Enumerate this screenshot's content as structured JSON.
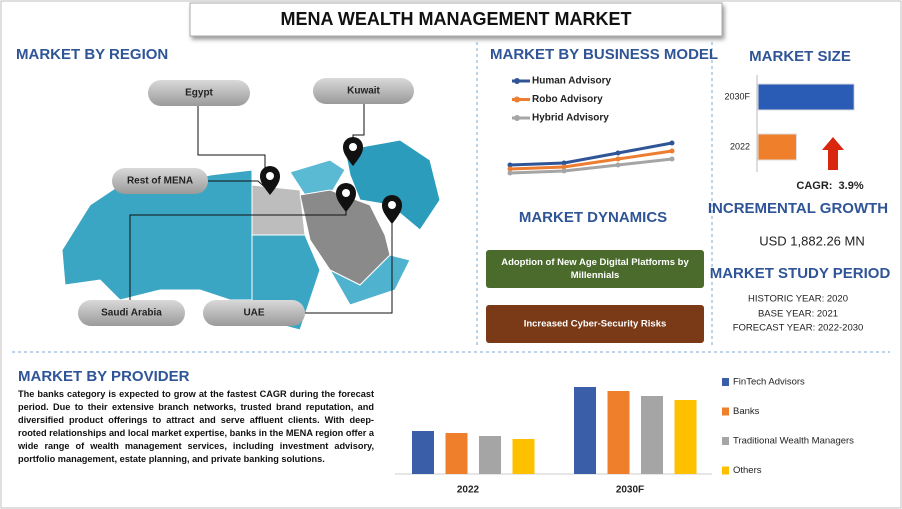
{
  "header": {
    "title": "MENA WEALTH MANAGEMENT MARKET"
  },
  "region": {
    "title": "MARKET BY REGION",
    "labels": [
      "Egypt",
      "Kuwait",
      "Rest of MENA",
      "Saudi Arabia",
      "UAE"
    ]
  },
  "dynamics": {
    "title": "MARKET DYNAMICS",
    "items": [
      "Adoption of New Age Digital Platforms by Millennials",
      "Increased Cyber-Security Risks"
    ]
  },
  "size": {
    "title": "MARKET SIZE",
    "cagr": "CAGR:  3.9%"
  },
  "growth": {
    "title": "INCREMENTAL GROWTH",
    "value": "USD 1,882.26 MN"
  },
  "period": {
    "title": "MARKET STUDY PERIOD",
    "lines": [
      "HISTORIC YEAR: 2020",
      "BASE YEAR: 2021",
      "FORECAST YEAR: 2022-2030"
    ]
  },
  "provider": {
    "title": "MARKET BY PROVIDER",
    "text": "The banks category is expected to grow at the fastest CAGR during the forecast period. Due to their extensive branch networks, trusted brand reputation, and diversified product offerings to attract and serve affluent clients. With deep-rooted relationships and local market expertise, banks in the MENA region offer a wide range of wealth management services, including investment advisory, portfolio management, estate planning, and private banking solutions."
  },
  "chart_data": [
    {
      "type": "line",
      "title": "MARKET BY BUSINESS MODEL",
      "categories": [
        null,
        null,
        null,
        null
      ],
      "ylim": [
        0,
        3
      ],
      "series": [
        {
          "name": "Human Advisory",
          "color": "#2f5597",
          "values": [
            1.0,
            1.1,
            1.6,
            2.1
          ]
        },
        {
          "name": "Robo Advisory",
          "color": "#ed7d31",
          "values": [
            0.8,
            0.9,
            1.3,
            1.7
          ]
        },
        {
          "name": "Hybrid Advisory",
          "color": "#a5a5a5",
          "values": [
            0.6,
            0.7,
            1.0,
            1.3
          ]
        }
      ]
    },
    {
      "type": "hbar",
      "categories": [
        "2030F",
        "2022"
      ],
      "xlim": [
        0,
        2.6
      ],
      "colors": [
        "#2a5bb5",
        "#f07f2b"
      ],
      "values": [
        2.5,
        1.0
      ]
    },
    {
      "type": "bar",
      "categories": [
        "2022",
        "2030F"
      ],
      "ylim": [
        0,
        90
      ],
      "series": [
        {
          "name": "FinTech Advisors",
          "color": "#3a5ea8",
          "values": [
            43,
            87
          ]
        },
        {
          "name": "Banks",
          "color": "#f07f2b",
          "values": [
            41,
            83
          ]
        },
        {
          "name": "Traditional Wealth Managers",
          "color": "#a5a5a5",
          "values": [
            38,
            78
          ]
        },
        {
          "name": "Others",
          "color": "#ffc000",
          "values": [
            35,
            74
          ]
        }
      ]
    }
  ]
}
